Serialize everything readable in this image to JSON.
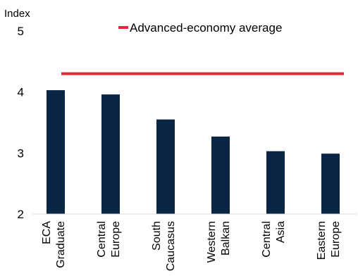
{
  "chart_data": {
    "type": "bar",
    "ylabel": "Index",
    "categories": [
      [
        "ECA",
        "Graduate"
      ],
      [
        "Central",
        "Europe"
      ],
      [
        "South",
        "Caucasus"
      ],
      [
        "Western",
        "Balkan"
      ],
      [
        "Central",
        "Asia"
      ],
      [
        "Eastern",
        "Europe"
      ]
    ],
    "values": [
      4.03,
      3.96,
      3.55,
      3.27,
      3.03,
      2.99
    ],
    "ylim": [
      2,
      5
    ],
    "yticks": [
      "2",
      "3",
      "4",
      "5"
    ],
    "reference_line": {
      "name": "Advanced-economy average",
      "value": 4.3,
      "color": "#e32636"
    },
    "bar_color": "#0b2545",
    "legend_position": "top",
    "grid": false
  }
}
